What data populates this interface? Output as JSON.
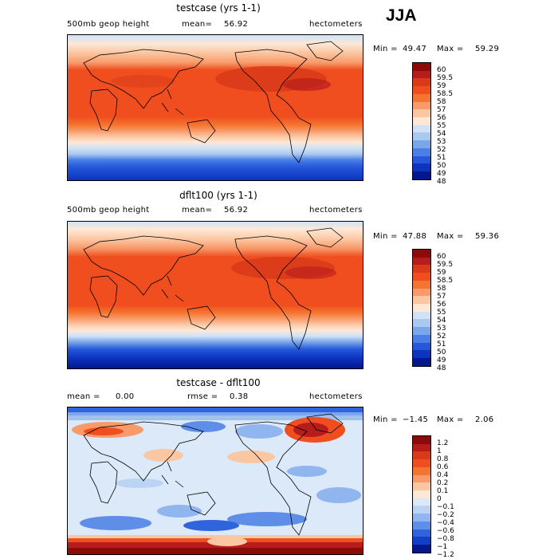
{
  "season": "JJA",
  "panels": [
    {
      "title": "testcase (yrs 1-1)",
      "variable": "500mb geop height",
      "mean_label": "mean=",
      "mean_value": "56.92",
      "units": "hectometers",
      "min_label": "Min =",
      "min_value": "49.47",
      "max_label": "Max =",
      "max_value": "59.29",
      "levels": [
        "60",
        "59.5",
        "59",
        "58.5",
        "58",
        "57",
        "56",
        "55",
        "54",
        "53",
        "52",
        "51",
        "50",
        "49",
        "48"
      ],
      "colors": [
        "#8b0a0a",
        "#b71c1c",
        "#d83a1a",
        "#f04e1e",
        "#f4752f",
        "#f89a6a",
        "#fbc7a3",
        "#fde8d6",
        "#cfe2f7",
        "#a9c9f0",
        "#7aa6ea",
        "#4a7fe6",
        "#2457d9",
        "#0d33bf",
        "#03178f"
      ]
    },
    {
      "title": "dflt100 (yrs 1-1)",
      "variable": "500mb geop height",
      "mean_label": "mean=",
      "mean_value": "56.92",
      "units": "hectometers",
      "min_label": "Min =",
      "min_value": "47.88",
      "max_label": "Max =",
      "max_value": "59.36",
      "levels": [
        "60",
        "59.5",
        "59",
        "58.5",
        "58",
        "57",
        "56",
        "55",
        "54",
        "53",
        "52",
        "51",
        "50",
        "49",
        "48"
      ],
      "colors": [
        "#8b0a0a",
        "#b71c1c",
        "#d83a1a",
        "#f04e1e",
        "#f4752f",
        "#f89a6a",
        "#fbc7a3",
        "#fde8d6",
        "#cfe2f7",
        "#a9c9f0",
        "#7aa6ea",
        "#4a7fe6",
        "#2457d9",
        "#0d33bf",
        "#03178f"
      ]
    },
    {
      "title": "testcase - dflt100",
      "mean_label": "mean =",
      "mean_value": "0.00",
      "rmse_label": "rmse =",
      "rmse_value": "0.38",
      "units": "hectometers",
      "min_label": "Min =",
      "min_value": "−1.45",
      "max_label": "Max =",
      "max_value": "2.06",
      "levels": [
        "1.2",
        "1",
        "0.8",
        "0.6",
        "0.4",
        "0.2",
        "0.1",
        "0",
        "−0.1",
        "−0.2",
        "−0.4",
        "−0.6",
        "−0.8",
        "−1",
        "−1.2"
      ],
      "colors": [
        "#8b0a0a",
        "#b71c1c",
        "#d83a1a",
        "#f04e1e",
        "#f4752f",
        "#f89a6a",
        "#fbc7a3",
        "#fde8d6",
        "#dbe9f8",
        "#bcd4f3",
        "#91b5ee",
        "#5e8ee8",
        "#2f64dd",
        "#1140c6",
        "#03178f"
      ]
    }
  ]
}
